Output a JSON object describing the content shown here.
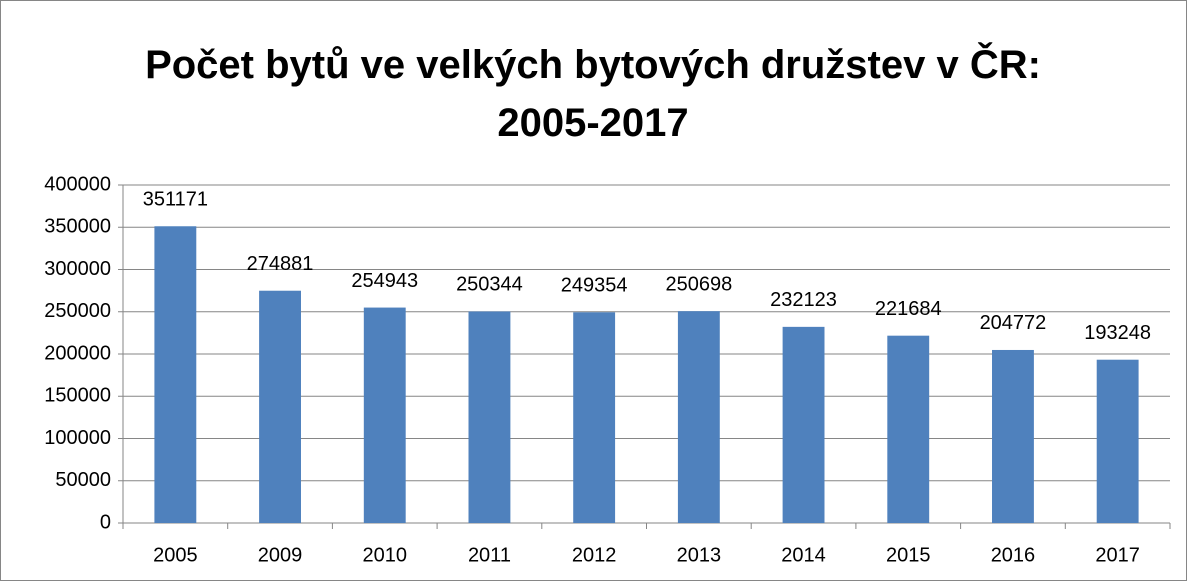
{
  "chart_data": {
    "type": "bar",
    "title": "Počet bytů ve velkých bytových družstev v ČR: 2005-2017",
    "categories": [
      "2005",
      "2009",
      "2010",
      "2011",
      "2012",
      "2013",
      "2014",
      "2015",
      "2016",
      "2017"
    ],
    "values": [
      351171,
      274881,
      254943,
      250344,
      249354,
      250698,
      232123,
      221684,
      204772,
      193248
    ],
    "color": "#4f81bd",
    "ylim": [
      0,
      400000
    ],
    "yticks": [
      0,
      50000,
      100000,
      150000,
      200000,
      250000,
      300000,
      350000,
      400000
    ],
    "grid": true
  }
}
